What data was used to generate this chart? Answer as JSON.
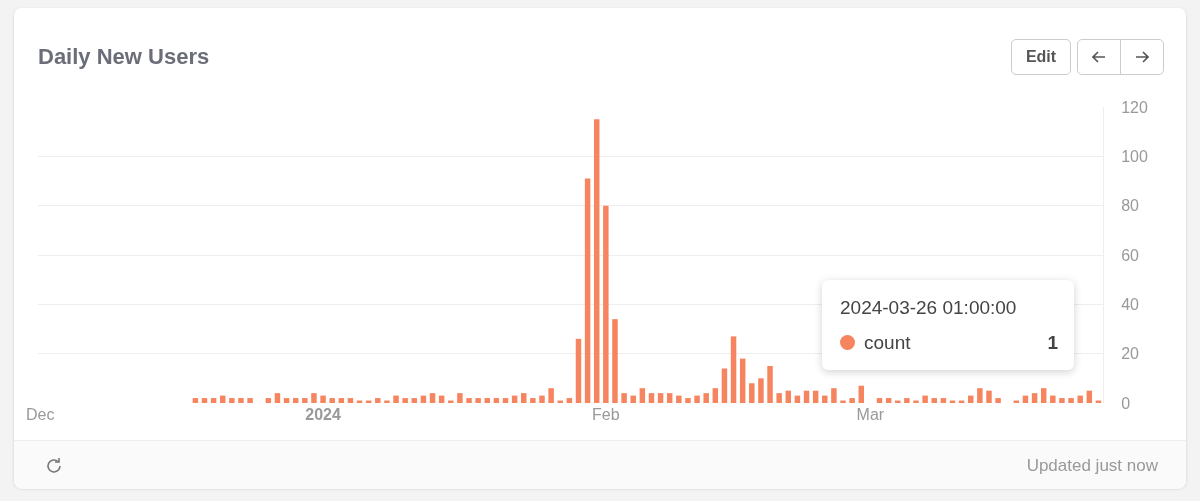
{
  "chart_data": {
    "type": "bar",
    "title": "Daily New Users",
    "x": [
      "2023-12-18",
      "2023-12-19",
      "2023-12-20",
      "2023-12-21",
      "2023-12-22",
      "2023-12-23",
      "2023-12-24",
      "2023-12-25",
      "2023-12-26",
      "2023-12-27",
      "2023-12-28",
      "2023-12-29",
      "2023-12-30",
      "2023-12-31",
      "2024-01-01",
      "2024-01-02",
      "2024-01-03",
      "2024-01-04",
      "2024-01-05",
      "2024-01-06",
      "2024-01-07",
      "2024-01-08",
      "2024-01-09",
      "2024-01-10",
      "2024-01-11",
      "2024-01-12",
      "2024-01-13",
      "2024-01-14",
      "2024-01-15",
      "2024-01-16",
      "2024-01-17",
      "2024-01-18",
      "2024-01-19",
      "2024-01-20",
      "2024-01-21",
      "2024-01-22",
      "2024-01-23",
      "2024-01-24",
      "2024-01-25",
      "2024-01-26",
      "2024-01-27",
      "2024-01-28",
      "2024-01-29",
      "2024-01-30",
      "2024-01-31",
      "2024-02-01",
      "2024-02-02",
      "2024-02-03",
      "2024-02-04",
      "2024-02-05",
      "2024-02-06",
      "2024-02-07",
      "2024-02-08",
      "2024-02-09",
      "2024-02-10",
      "2024-02-11",
      "2024-02-12",
      "2024-02-13",
      "2024-02-14",
      "2024-02-15",
      "2024-02-16",
      "2024-02-17",
      "2024-02-18",
      "2024-02-19",
      "2024-02-20",
      "2024-02-21",
      "2024-02-22",
      "2024-02-23",
      "2024-02-24",
      "2024-02-25",
      "2024-02-26",
      "2024-02-27",
      "2024-02-28",
      "2024-02-29",
      "2024-03-01",
      "2024-03-02",
      "2024-03-03",
      "2024-03-04",
      "2024-03-05",
      "2024-03-06",
      "2024-03-07",
      "2024-03-08",
      "2024-03-09",
      "2024-03-10",
      "2024-03-11",
      "2024-03-12",
      "2024-03-13",
      "2024-03-14",
      "2024-03-15",
      "2024-03-16",
      "2024-03-17",
      "2024-03-18",
      "2024-03-19",
      "2024-03-20",
      "2024-03-21",
      "2024-03-22",
      "2024-03-23",
      "2024-03-24",
      "2024-03-25",
      "2024-03-26"
    ],
    "series": [
      {
        "name": "count",
        "color": "#f5845f",
        "values": [
          2,
          2,
          2,
          3,
          2,
          2,
          2,
          0,
          2,
          4,
          2,
          2,
          2,
          4,
          3,
          2,
          2,
          2,
          1,
          1,
          2,
          1,
          3,
          2,
          2,
          3,
          4,
          3,
          1,
          4,
          2,
          2,
          2,
          2,
          2,
          3,
          4,
          2,
          3,
          6,
          1,
          2,
          26,
          91,
          115,
          80,
          34,
          4,
          3,
          6,
          4,
          4,
          4,
          3,
          2,
          3,
          4,
          6,
          14,
          27,
          18,
          8,
          10,
          15,
          4,
          5,
          3,
          5,
          5,
          3,
          6,
          1,
          2,
          7,
          0,
          2,
          2,
          1,
          2,
          1,
          3,
          2,
          2,
          1,
          1,
          3,
          6,
          5,
          2,
          0,
          1,
          3,
          4,
          6,
          3,
          2,
          2,
          3,
          5,
          1
        ]
      }
    ],
    "xlim": [
      "2023-11-30T18:00",
      "2024-03-26T12:00"
    ],
    "xticks": [
      {
        "value": "2023-12-01",
        "label": "Dec"
      },
      {
        "value": "2024-01-01",
        "label": "2024"
      },
      {
        "value": "2024-02-01",
        "label": "Feb"
      },
      {
        "value": "2024-03-01",
        "label": "Mar"
      }
    ],
    "ylim": [
      0,
      120
    ],
    "yticks": [
      0,
      20,
      40,
      60,
      80,
      100,
      120
    ],
    "grid": "y",
    "annotations": [
      "2024-03-26 01:00:00",
      "1",
      "Edit",
      "Updated just now"
    ]
  }
}
